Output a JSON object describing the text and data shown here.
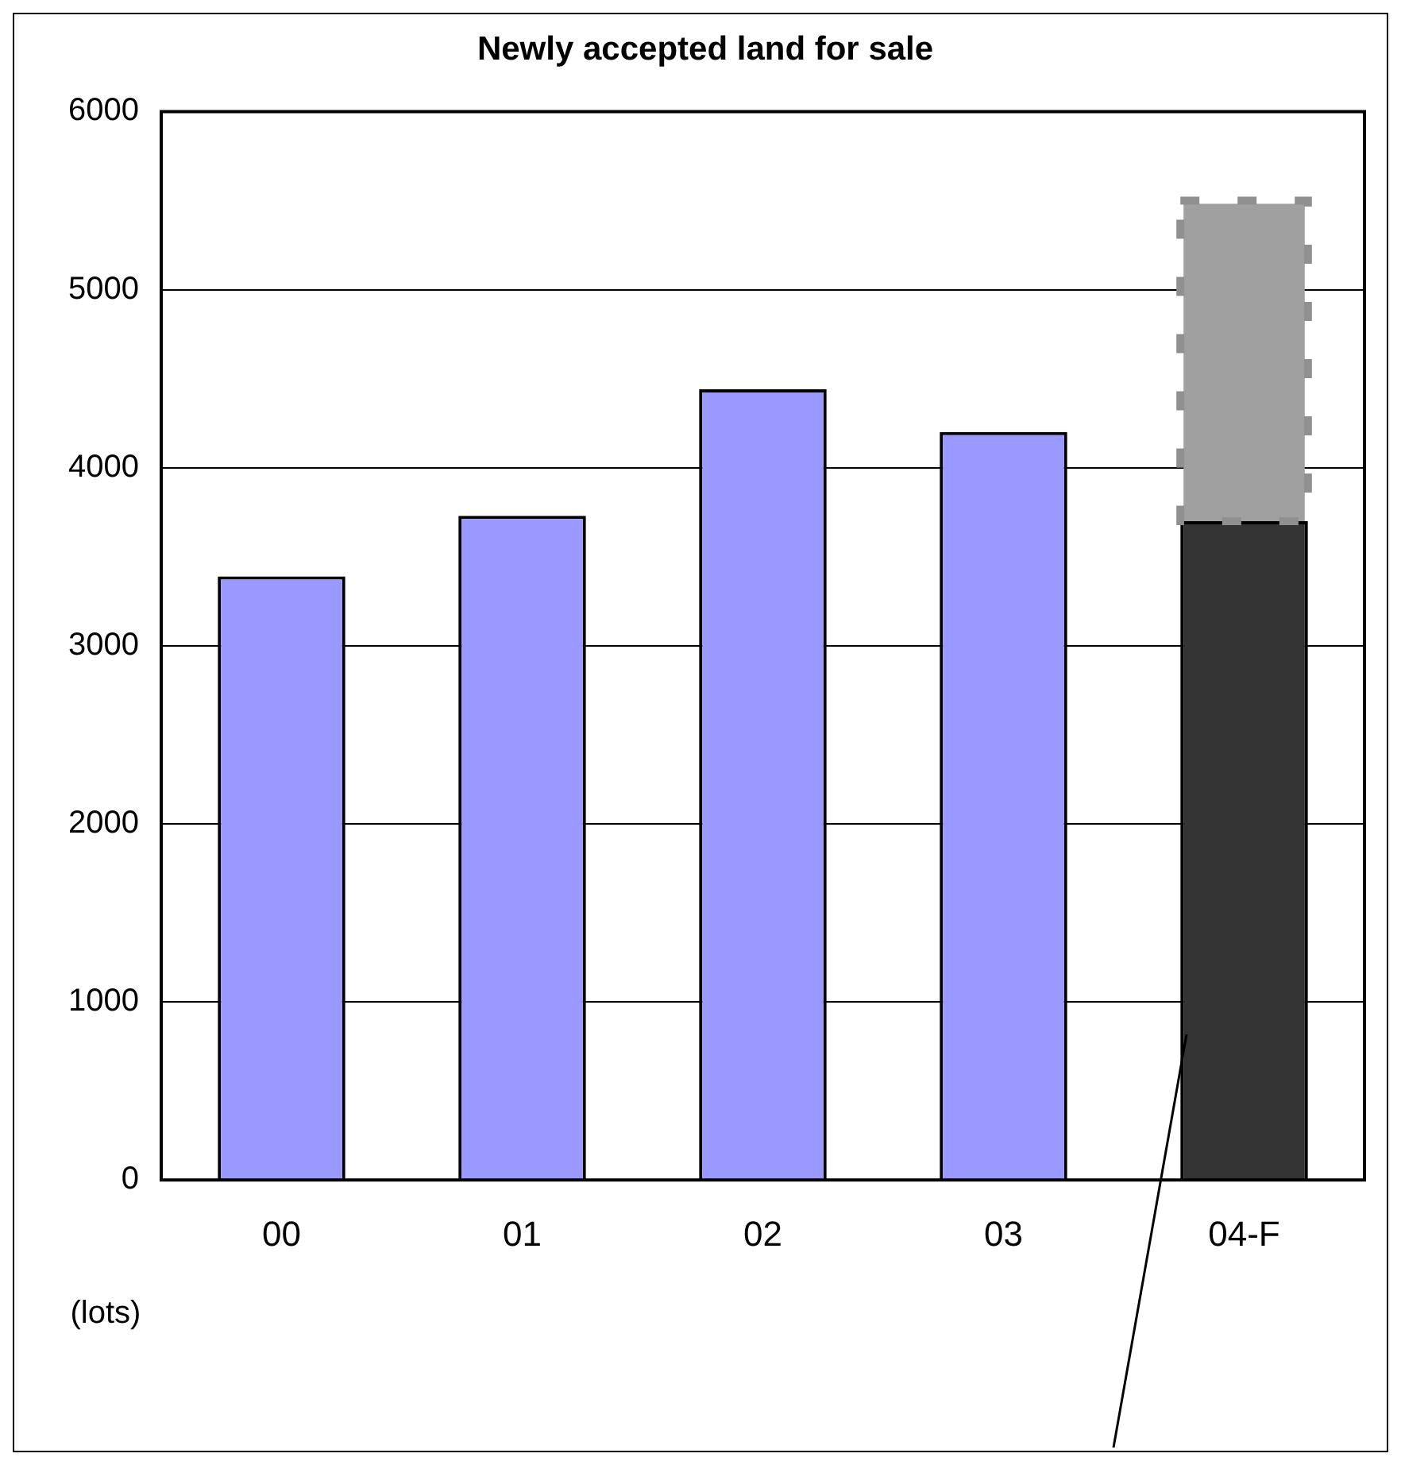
{
  "chart_data": {
    "type": "bar",
    "title": "Newly accepted land for sale",
    "ylabel": "(lots)",
    "categories": [
      "00",
      "01",
      "02",
      "03",
      "04-F"
    ],
    "stacked": true,
    "series": [
      {
        "colors": [
          "#9999ff",
          "#9999ff",
          "#9999ff",
          "#9999ff",
          "#333333"
        ],
        "values": [
          3390,
          3730,
          4440,
          4200,
          3700
        ]
      },
      {
        "color": "#a0a0a0",
        "line_style": "dashed",
        "values": [
          null,
          null,
          null,
          null,
          1800
        ]
      }
    ],
    "ylim": [
      0,
      6000
    ],
    "yticks": [
      0,
      1000,
      2000,
      3000,
      4000,
      5000,
      6000
    ],
    "grid": "y",
    "legend": false
  }
}
